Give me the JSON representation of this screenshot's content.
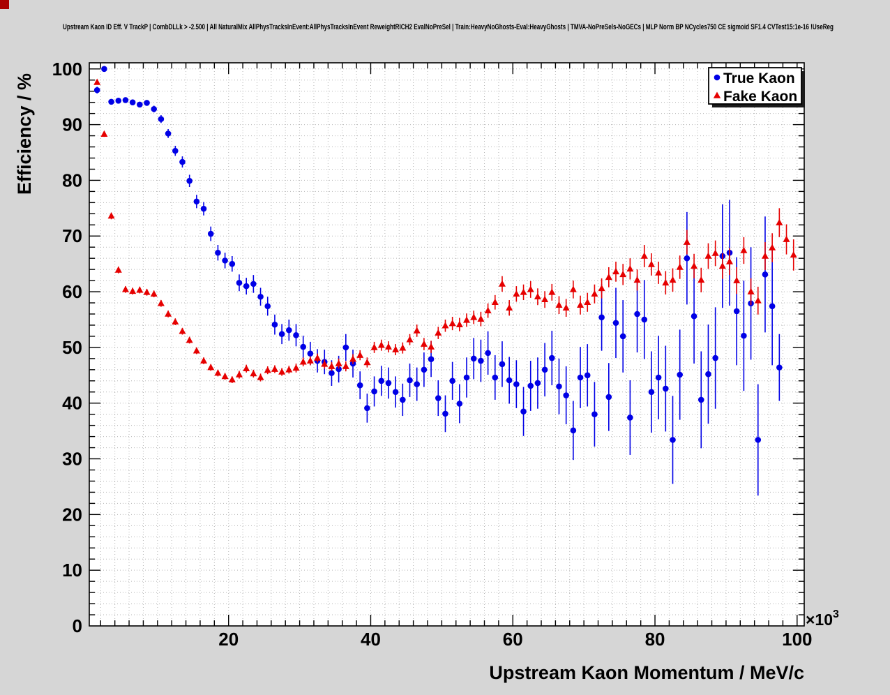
{
  "title": "Upstream Kaon ID Eff. V TrackP | CombDLLk > -2.500 | All NaturalMix AllPhysTracksInEvent:AllPhysTracksInEvent ReweightRICH2 EvalNoPreSel | Train:HeavyNoGhosts-Eval:HeavyGhosts | TMVA-NoPreSels-NoGECs | MLP Norm BP NCycles750 CE sigmoid SF1.4 CVTest15:1e-16 !UseReg",
  "window": {
    "corner_marker_color": "#aa0000",
    "canvas_background": "#d6d6d6"
  },
  "chart_data": {
    "type": "scatter",
    "title": "Upstream Kaon ID Eff. V TrackP",
    "xlabel": "Upstream Kaon Momentum / MeV/c",
    "ylabel": "Efficiency / %",
    "x_exponent_base": "×10",
    "x_exponent_power": "3",
    "xlim": [
      0,
      101
    ],
    "ylim": [
      0,
      101
    ],
    "x_major_ticks": [
      20,
      40,
      60,
      80,
      100
    ],
    "y_major_ticks": [
      0,
      10,
      20,
      30,
      40,
      50,
      60,
      70,
      80,
      90,
      100
    ],
    "grid": true,
    "grid_step": 2,
    "legend": {
      "position": "top-right",
      "entries": [
        {
          "label": "True Kaon",
          "marker": "circle",
          "color": "#0000e6"
        },
        {
          "label": "Fake Kaon",
          "marker": "triangle",
          "color": "#e60000"
        }
      ]
    },
    "series": [
      {
        "name": "True Kaon",
        "marker": "circle",
        "color": "#0000e6",
        "points": [
          [
            1.5,
            96.2,
            0.6
          ],
          [
            2.5,
            100.0,
            0.3
          ],
          [
            3.5,
            94.1,
            0.5
          ],
          [
            4.5,
            94.3,
            0.5
          ],
          [
            5.5,
            94.4,
            0.5
          ],
          [
            6.5,
            94.0,
            0.5
          ],
          [
            7.5,
            93.6,
            0.5
          ],
          [
            8.5,
            93.9,
            0.5
          ],
          [
            9.5,
            92.8,
            0.6
          ],
          [
            10.5,
            91.0,
            0.7
          ],
          [
            11.5,
            88.4,
            0.8
          ],
          [
            12.5,
            85.3,
            0.9
          ],
          [
            13.5,
            83.3,
            1.0
          ],
          [
            14.5,
            79.9,
            1.1
          ],
          [
            15.5,
            76.2,
            1.2
          ],
          [
            16.5,
            74.9,
            1.2
          ],
          [
            17.5,
            70.4,
            1.3
          ],
          [
            18.5,
            67.0,
            1.4
          ],
          [
            19.5,
            65.6,
            1.4
          ],
          [
            20.5,
            65.0,
            1.4
          ],
          [
            21.5,
            61.6,
            1.5
          ],
          [
            22.5,
            61.0,
            1.5
          ],
          [
            23.5,
            61.4,
            1.6
          ],
          [
            24.5,
            59.1,
            1.6
          ],
          [
            25.5,
            57.4,
            1.7
          ],
          [
            26.5,
            54.1,
            1.8
          ],
          [
            27.5,
            52.4,
            1.8
          ],
          [
            28.5,
            53.1,
            1.9
          ],
          [
            29.5,
            52.2,
            2.0
          ],
          [
            30.5,
            50.1,
            2.0
          ],
          [
            31.5,
            48.9,
            2.1
          ],
          [
            32.5,
            47.6,
            2.1
          ],
          [
            33.5,
            47.4,
            2.2
          ],
          [
            34.5,
            45.4,
            2.3
          ],
          [
            35.5,
            46.1,
            2.4
          ],
          [
            36.5,
            50.0,
            2.4
          ],
          [
            37.5,
            47.1,
            2.5
          ],
          [
            38.5,
            43.2,
            2.5
          ],
          [
            39.5,
            39.1,
            2.6
          ],
          [
            40.5,
            42.1,
            2.7
          ],
          [
            41.5,
            44.0,
            2.7
          ],
          [
            42.5,
            43.6,
            2.8
          ],
          [
            43.5,
            42.0,
            2.8
          ],
          [
            44.5,
            40.6,
            2.9
          ],
          [
            45.5,
            44.1,
            3.0
          ],
          [
            46.5,
            43.4,
            3.0
          ],
          [
            47.5,
            46.0,
            3.1
          ],
          [
            48.5,
            47.9,
            3.2
          ],
          [
            49.5,
            40.9,
            3.2
          ],
          [
            50.5,
            38.1,
            3.3
          ],
          [
            51.5,
            44.0,
            3.4
          ],
          [
            52.5,
            39.9,
            3.5
          ],
          [
            53.5,
            44.6,
            3.6
          ],
          [
            54.5,
            48.0,
            3.7
          ],
          [
            55.5,
            47.6,
            3.8
          ],
          [
            56.5,
            49.0,
            3.9
          ],
          [
            57.5,
            44.6,
            4.0
          ],
          [
            58.5,
            47.0,
            4.1
          ],
          [
            59.5,
            44.1,
            4.2
          ],
          [
            60.5,
            43.4,
            4.3
          ],
          [
            61.5,
            38.5,
            4.4
          ],
          [
            62.5,
            43.1,
            4.5
          ],
          [
            63.5,
            43.6,
            4.6
          ],
          [
            64.5,
            46.0,
            4.8
          ],
          [
            65.5,
            48.1,
            4.9
          ],
          [
            66.5,
            43.0,
            5.0
          ],
          [
            67.5,
            41.4,
            5.2
          ],
          [
            68.5,
            35.1,
            5.3
          ],
          [
            69.5,
            44.6,
            5.5
          ],
          [
            70.5,
            45.0,
            5.6
          ],
          [
            71.5,
            38.0,
            5.8
          ],
          [
            72.5,
            55.4,
            6.0
          ],
          [
            73.5,
            41.1,
            6.1
          ],
          [
            74.5,
            54.4,
            6.3
          ],
          [
            75.5,
            52.0,
            6.5
          ],
          [
            76.5,
            37.4,
            6.7
          ],
          [
            77.5,
            56.0,
            6.9
          ],
          [
            78.5,
            55.0,
            7.1
          ],
          [
            79.5,
            42.0,
            7.3
          ],
          [
            80.5,
            44.6,
            7.5
          ],
          [
            81.5,
            42.6,
            7.7
          ],
          [
            82.5,
            33.4,
            7.9
          ],
          [
            83.5,
            45.1,
            8.1
          ],
          [
            84.5,
            66.0,
            8.3
          ],
          [
            85.5,
            55.6,
            8.5
          ],
          [
            86.5,
            40.6,
            8.7
          ],
          [
            87.5,
            45.2,
            8.9
          ],
          [
            88.5,
            48.1,
            9.1
          ],
          [
            89.5,
            66.4,
            9.3
          ],
          [
            90.5,
            67.0,
            9.5
          ],
          [
            91.5,
            56.5,
            9.7
          ],
          [
            92.5,
            52.1,
            9.9
          ],
          [
            93.5,
            57.9,
            10.1
          ],
          [
            94.5,
            33.4,
            10.0
          ],
          [
            95.5,
            63.1,
            10.4
          ],
          [
            96.5,
            57.4,
            10.6
          ],
          [
            97.5,
            46.4,
            6.0
          ]
        ]
      },
      {
        "name": "Fake Kaon",
        "marker": "triangle",
        "color": "#e60000",
        "points": [
          [
            1.5,
            97.6,
            0.4
          ],
          [
            2.5,
            88.3,
            0.5
          ],
          [
            3.5,
            73.6,
            0.6
          ],
          [
            4.5,
            63.9,
            0.6
          ],
          [
            5.5,
            60.4,
            0.6
          ],
          [
            6.5,
            60.1,
            0.6
          ],
          [
            7.5,
            60.3,
            0.6
          ],
          [
            8.5,
            59.9,
            0.6
          ],
          [
            9.5,
            59.6,
            0.6
          ],
          [
            10.5,
            57.9,
            0.6
          ],
          [
            11.5,
            56.0,
            0.6
          ],
          [
            12.5,
            54.6,
            0.6
          ],
          [
            13.5,
            52.9,
            0.6
          ],
          [
            14.5,
            51.3,
            0.6
          ],
          [
            15.5,
            49.4,
            0.6
          ],
          [
            16.5,
            47.6,
            0.6
          ],
          [
            17.5,
            46.4,
            0.6
          ],
          [
            18.5,
            45.4,
            0.6
          ],
          [
            19.5,
            44.8,
            0.6
          ],
          [
            20.5,
            44.2,
            0.6
          ],
          [
            21.5,
            45.1,
            0.7
          ],
          [
            22.5,
            46.2,
            0.7
          ],
          [
            23.5,
            45.3,
            0.7
          ],
          [
            24.5,
            44.6,
            0.7
          ],
          [
            25.5,
            45.9,
            0.7
          ],
          [
            26.5,
            46.1,
            0.7
          ],
          [
            27.5,
            45.6,
            0.7
          ],
          [
            28.5,
            46.0,
            0.7
          ],
          [
            29.5,
            46.3,
            0.8
          ],
          [
            30.5,
            47.4,
            0.8
          ],
          [
            31.5,
            47.6,
            0.8
          ],
          [
            32.5,
            48.1,
            0.8
          ],
          [
            33.5,
            47.0,
            0.8
          ],
          [
            34.5,
            46.6,
            0.8
          ],
          [
            35.5,
            47.1,
            0.9
          ],
          [
            36.5,
            46.6,
            0.9
          ],
          [
            37.5,
            47.9,
            0.9
          ],
          [
            38.5,
            48.6,
            0.9
          ],
          [
            39.5,
            47.3,
            0.9
          ],
          [
            40.5,
            50.0,
            1.0
          ],
          [
            41.5,
            50.4,
            1.0
          ],
          [
            42.5,
            50.1,
            1.0
          ],
          [
            43.5,
            49.6,
            1.0
          ],
          [
            44.5,
            49.9,
            1.0
          ],
          [
            45.5,
            51.4,
            1.0
          ],
          [
            46.5,
            53.0,
            1.1
          ],
          [
            47.5,
            50.6,
            1.1
          ],
          [
            48.5,
            50.1,
            1.1
          ],
          [
            49.5,
            52.6,
            1.1
          ],
          [
            50.5,
            53.9,
            1.1
          ],
          [
            51.5,
            54.3,
            1.2
          ],
          [
            52.5,
            54.1,
            1.2
          ],
          [
            53.5,
            54.9,
            1.2
          ],
          [
            54.5,
            55.4,
            1.2
          ],
          [
            55.5,
            55.1,
            1.3
          ],
          [
            56.5,
            56.6,
            1.3
          ],
          [
            57.5,
            58.1,
            1.3
          ],
          [
            58.5,
            61.4,
            1.4
          ],
          [
            59.5,
            57.1,
            1.4
          ],
          [
            60.5,
            59.6,
            1.4
          ],
          [
            61.5,
            59.9,
            1.4
          ],
          [
            62.5,
            60.4,
            1.5
          ],
          [
            63.5,
            59.1,
            1.5
          ],
          [
            64.5,
            58.6,
            1.5
          ],
          [
            65.5,
            59.9,
            1.5
          ],
          [
            66.5,
            57.6,
            1.6
          ],
          [
            67.5,
            57.1,
            1.6
          ],
          [
            68.5,
            60.4,
            1.6
          ],
          [
            69.5,
            57.6,
            1.7
          ],
          [
            70.5,
            58.1,
            1.7
          ],
          [
            71.5,
            59.6,
            1.7
          ],
          [
            72.5,
            60.6,
            1.8
          ],
          [
            73.5,
            62.6,
            1.8
          ],
          [
            74.5,
            63.6,
            1.8
          ],
          [
            75.5,
            63.1,
            1.9
          ],
          [
            76.5,
            64.1,
            1.9
          ],
          [
            77.5,
            62.1,
            1.9
          ],
          [
            78.5,
            66.4,
            2.0
          ],
          [
            79.5,
            64.9,
            2.0
          ],
          [
            80.5,
            63.4,
            2.0
          ],
          [
            81.5,
            61.6,
            2.1
          ],
          [
            82.5,
            62.1,
            2.1
          ],
          [
            83.5,
            64.4,
            2.1
          ],
          [
            84.5,
            68.9,
            2.2
          ],
          [
            85.5,
            64.6,
            2.2
          ],
          [
            86.5,
            62.1,
            2.2
          ],
          [
            87.5,
            66.4,
            2.3
          ],
          [
            88.5,
            66.9,
            2.3
          ],
          [
            89.5,
            64.6,
            2.3
          ],
          [
            90.5,
            65.4,
            2.4
          ],
          [
            91.5,
            62.0,
            2.4
          ],
          [
            92.5,
            67.4,
            2.4
          ],
          [
            93.5,
            60.0,
            2.4
          ],
          [
            94.5,
            58.4,
            2.5
          ],
          [
            95.5,
            66.4,
            2.5
          ],
          [
            96.5,
            67.9,
            2.6
          ],
          [
            97.5,
            72.4,
            2.6
          ],
          [
            98.5,
            69.4,
            2.7
          ],
          [
            99.5,
            66.6,
            2.8
          ]
        ]
      }
    ]
  }
}
